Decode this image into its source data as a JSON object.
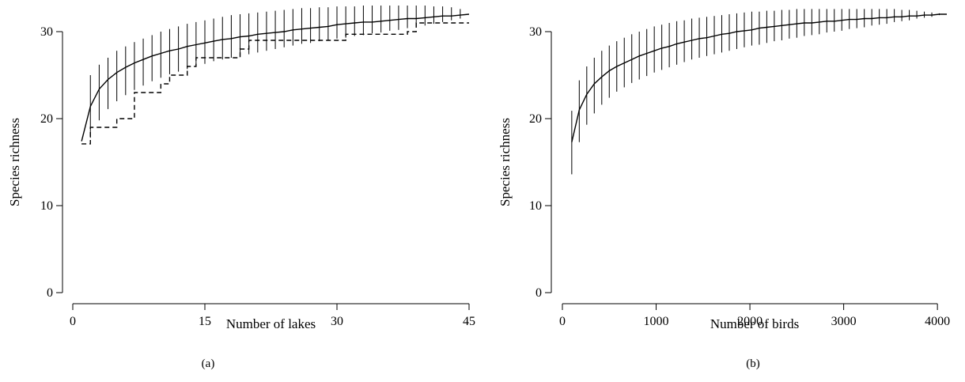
{
  "chart_data": [
    {
      "type": "line",
      "panel_label": "(a)",
      "xlabel": "Number of lakes",
      "ylabel": "Species richness",
      "xlim": [
        0,
        45
      ],
      "ylim": [
        0,
        31
      ],
      "xticks": [
        0,
        15,
        30,
        45
      ],
      "yticks": [
        0,
        10,
        20,
        30
      ],
      "grid": false,
      "series": [
        {
          "style": "solid",
          "x": [
            1,
            2,
            3,
            4,
            5,
            6,
            7,
            8,
            9,
            10,
            11,
            12,
            13,
            14,
            15,
            16,
            17,
            18,
            19,
            20,
            21,
            22,
            23,
            24,
            25,
            26,
            27,
            28,
            29,
            30,
            31,
            32,
            33,
            34,
            35,
            36,
            37,
            38,
            39,
            40,
            41,
            42,
            43,
            44,
            45
          ],
          "y": [
            17.4,
            21.4,
            23.4,
            24.5,
            25.3,
            25.9,
            26.4,
            26.8,
            27.2,
            27.5,
            27.8,
            28.0,
            28.3,
            28.5,
            28.7,
            28.9,
            29.1,
            29.2,
            29.4,
            29.5,
            29.7,
            29.8,
            29.9,
            30.0,
            30.2,
            30.3,
            30.4,
            30.5,
            30.6,
            30.8,
            30.9,
            31.0,
            31.1,
            31.1,
            31.2,
            31.3,
            31.4,
            31.5,
            31.5,
            31.6,
            31.7,
            31.8,
            31.8,
            31.9,
            32.0
          ],
          "error_low": [
            17.4,
            17.8,
            19.8,
            21.1,
            22.0,
            22.7,
            23.3,
            23.8,
            24.3,
            24.7,
            25.1,
            25.4,
            25.7,
            26.0,
            26.3,
            26.6,
            26.8,
            27.0,
            27.2,
            27.4,
            27.6,
            27.8,
            28.0,
            28.2,
            28.4,
            28.6,
            28.7,
            28.9,
            29.0,
            29.2,
            29.3,
            29.5,
            29.6,
            29.8,
            29.9,
            30.1,
            30.2,
            30.4,
            30.6,
            30.7,
            30.9,
            31.1,
            31.3,
            31.5,
            32.0
          ],
          "error_high": [
            17.4,
            25.0,
            26.2,
            27.0,
            27.8,
            28.3,
            28.8,
            29.2,
            29.6,
            30.0,
            30.3,
            30.6,
            30.9,
            31.1,
            31.3,
            31.5,
            31.7,
            31.9,
            32.0,
            32.1,
            32.2,
            32.3,
            32.4,
            32.5,
            32.6,
            32.7,
            32.7,
            32.8,
            32.8,
            32.9,
            32.9,
            32.9,
            33.0,
            33.0,
            33.0,
            33.0,
            33.0,
            33.0,
            33.0,
            33.0,
            32.9,
            32.9,
            32.8,
            32.6,
            32.0
          ]
        },
        {
          "style": "dashed",
          "x": [
            1,
            2,
            3,
            4,
            5,
            6,
            7,
            8,
            9,
            10,
            11,
            12,
            13,
            14,
            15,
            16,
            17,
            18,
            19,
            20,
            21,
            22,
            23,
            24,
            25,
            26,
            27,
            28,
            29,
            30,
            31,
            32,
            33,
            34,
            35,
            36,
            37,
            38,
            39,
            40,
            41,
            42,
            43,
            44,
            45
          ],
          "y": [
            17.1,
            19.0,
            19.0,
            19.0,
            20.0,
            20.0,
            23.0,
            23.0,
            23.0,
            24.0,
            25.0,
            25.0,
            26.0,
            27.0,
            27.0,
            27.0,
            27.0,
            27.0,
            28.0,
            29.0,
            29.0,
            29.0,
            29.0,
            29.0,
            29.0,
            29.0,
            29.0,
            29.0,
            29.0,
            29.0,
            29.7,
            29.7,
            29.7,
            29.7,
            29.7,
            29.7,
            29.7,
            30.0,
            31.0,
            31.0,
            31.0,
            31.0,
            31.0,
            31.0,
            31.0
          ]
        }
      ]
    },
    {
      "type": "line",
      "panel_label": "(b)",
      "xlabel": "Number of birds",
      "ylabel": "Species richness",
      "xlim": [
        0,
        4100
      ],
      "ylim": [
        0,
        31
      ],
      "xticks": [
        0,
        1000,
        2000,
        3000,
        4000
      ],
      "yticks": [
        0,
        10,
        20,
        30
      ],
      "grid": false,
      "series": [
        {
          "style": "solid",
          "x": [
            100,
            180,
            260,
            340,
            420,
            500,
            580,
            660,
            740,
            820,
            900,
            980,
            1060,
            1140,
            1220,
            1300,
            1380,
            1460,
            1540,
            1620,
            1700,
            1780,
            1860,
            1940,
            2020,
            2100,
            2180,
            2260,
            2340,
            2420,
            2500,
            2580,
            2660,
            2740,
            2820,
            2900,
            2980,
            3060,
            3140,
            3220,
            3300,
            3380,
            3460,
            3540,
            3620,
            3700,
            3780,
            3860,
            3940,
            4020,
            4100
          ],
          "y": [
            17.3,
            21.0,
            22.8,
            24.0,
            24.8,
            25.5,
            26.0,
            26.4,
            26.8,
            27.2,
            27.5,
            27.8,
            28.1,
            28.3,
            28.6,
            28.8,
            29.0,
            29.2,
            29.3,
            29.5,
            29.7,
            29.8,
            30.0,
            30.1,
            30.2,
            30.4,
            30.5,
            30.6,
            30.7,
            30.8,
            30.9,
            31.0,
            31.0,
            31.1,
            31.2,
            31.2,
            31.3,
            31.4,
            31.4,
            31.5,
            31.5,
            31.6,
            31.6,
            31.7,
            31.7,
            31.8,
            31.8,
            31.9,
            31.9,
            32.0,
            32.0
          ],
          "error_low": [
            13.6,
            17.3,
            19.3,
            20.6,
            21.6,
            22.4,
            23.1,
            23.6,
            24.1,
            24.5,
            24.9,
            25.3,
            25.6,
            25.9,
            26.2,
            26.5,
            26.8,
            27.0,
            27.2,
            27.4,
            27.6,
            27.8,
            28.0,
            28.2,
            28.4,
            28.5,
            28.7,
            28.9,
            29.0,
            29.2,
            29.3,
            29.5,
            29.6,
            29.7,
            29.9,
            30.0,
            30.1,
            30.3,
            30.4,
            30.5,
            30.7,
            30.8,
            30.9,
            31.1,
            31.2,
            31.3,
            31.5,
            31.6,
            31.7,
            31.9,
            32.0
          ],
          "error_high": [
            20.9,
            24.4,
            26.0,
            27.0,
            27.8,
            28.4,
            28.9,
            29.3,
            29.7,
            30.0,
            30.3,
            30.6,
            30.8,
            31.0,
            31.2,
            31.3,
            31.5,
            31.6,
            31.7,
            31.8,
            31.9,
            32.0,
            32.1,
            32.2,
            32.3,
            32.3,
            32.4,
            32.4,
            32.5,
            32.5,
            32.6,
            32.6,
            32.6,
            32.6,
            32.6,
            32.6,
            32.6,
            32.6,
            32.6,
            32.6,
            32.6,
            32.6,
            32.6,
            32.6,
            32.5,
            32.5,
            32.4,
            32.3,
            32.2,
            32.1,
            32.0
          ]
        }
      ]
    }
  ]
}
